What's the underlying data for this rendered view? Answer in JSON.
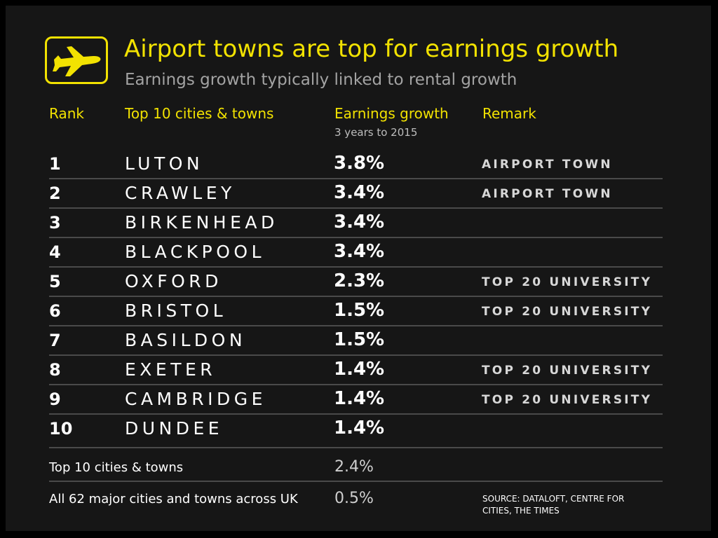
{
  "title": "Airport towns are top for earnings growth",
  "subtitle": "Earnings growth typically linked to rental growth",
  "headers": {
    "rank": "Rank",
    "city": "Top 10 cities & towns",
    "growth": "Earnings growth",
    "growth_sub": "3 years to 2015",
    "remark": "Remark"
  },
  "rows": [
    {
      "rank": "1",
      "city": "LUTON",
      "growth": "3.8%",
      "remark": "AIRPORT TOWN"
    },
    {
      "rank": "2",
      "city": "CRAWLEY",
      "growth": "3.4%",
      "remark": "AIRPORT TOWN"
    },
    {
      "rank": "3",
      "city": "BIRKENHEAD",
      "growth": "3.4%",
      "remark": ""
    },
    {
      "rank": "4",
      "city": "BLACKPOOL",
      "growth": "3.4%",
      "remark": ""
    },
    {
      "rank": "5",
      "city": "OXFORD",
      "growth": "2.3%",
      "remark": "TOP 20 UNIVERSITY"
    },
    {
      "rank": "6",
      "city": "BRISTOL",
      "growth": "1.5%",
      "remark": "TOP 20 UNIVERSITY"
    },
    {
      "rank": "7",
      "city": "BASILDON",
      "growth": "1.5%",
      "remark": ""
    },
    {
      "rank": "8",
      "city": "EXETER",
      "growth": "1.4%",
      "remark": "TOP 20 UNIVERSITY"
    },
    {
      "rank": "9",
      "city": "CAMBRIDGE",
      "growth": "1.4%",
      "remark": "TOP 20 UNIVERSITY"
    },
    {
      "rank": "10",
      "city": "DUNDEE",
      "growth": "1.4%",
      "remark": ""
    }
  ],
  "summary": [
    {
      "label": "Top 10 cities & towns",
      "value": "2.4%"
    },
    {
      "label": "All 62 major cities and towns across UK",
      "value": "0.5%"
    }
  ],
  "source": "SOURCE: DATALOFT, CENTRE FOR CITIES, THE TIMES",
  "colors": {
    "accent": "#f2e201",
    "background": "#161616",
    "text": "#ffffff"
  },
  "icon": "airplane-icon"
}
